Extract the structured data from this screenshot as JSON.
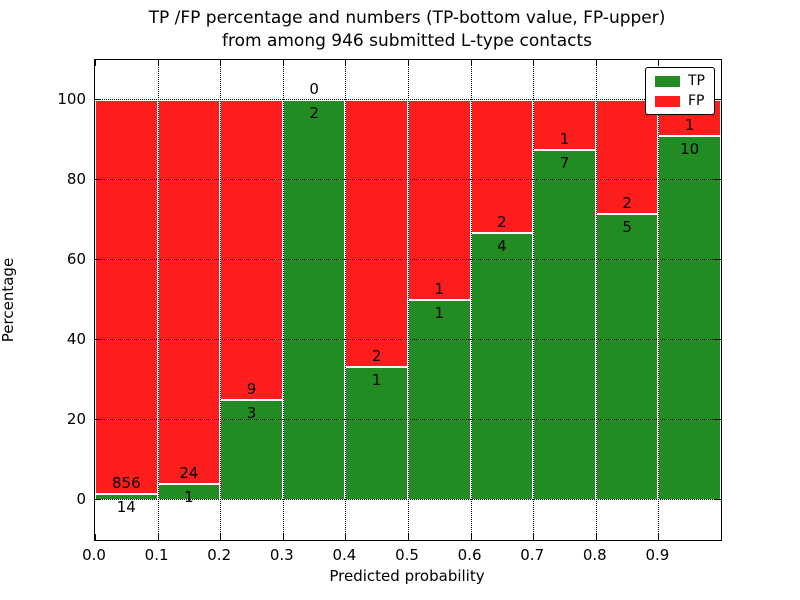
{
  "title": {
    "line1": "TP /FP percentage and numbers (TP-bottom value, FP-upper)",
    "line2": "from among 946 submitted L-type contacts"
  },
  "axes": {
    "xlabel": "Predicted probability",
    "ylabel": "Percentage",
    "xtick_labels": [
      "0.0",
      "0.1",
      "0.2",
      "0.3",
      "0.4",
      "0.5",
      "0.6",
      "0.7",
      "0.8",
      "0.9"
    ],
    "ytick_labels": [
      "0",
      "20",
      "40",
      "60",
      "80",
      "100"
    ]
  },
  "legend": {
    "items": [
      {
        "label": "TP",
        "color": "#228b22"
      },
      {
        "label": "FP",
        "color": "#fd1d1d"
      }
    ]
  },
  "chart_data": {
    "type": "bar",
    "variant": "stacked-percentage",
    "title": "TP /FP percentage and numbers (TP-bottom value, FP-upper)\nfrom among 946 submitted L-type contacts",
    "xlabel": "Predicted probability",
    "ylabel": "Percentage",
    "total_submitted": 946,
    "bins": [
      {
        "x_start": 0.0,
        "x_end": 0.1,
        "tp": 14,
        "fp": 856,
        "tp_percent": 1.61
      },
      {
        "x_start": 0.1,
        "x_end": 0.2,
        "tp": 1,
        "fp": 24,
        "tp_percent": 4.0
      },
      {
        "x_start": 0.2,
        "x_end": 0.3,
        "tp": 3,
        "fp": 9,
        "tp_percent": 25.0
      },
      {
        "x_start": 0.3,
        "x_end": 0.4,
        "tp": 2,
        "fp": 0,
        "tp_percent": 100.0
      },
      {
        "x_start": 0.4,
        "x_end": 0.5,
        "tp": 1,
        "fp": 2,
        "tp_percent": 33.33
      },
      {
        "x_start": 0.5,
        "x_end": 0.6,
        "tp": 1,
        "fp": 1,
        "tp_percent": 50.0
      },
      {
        "x_start": 0.6,
        "x_end": 0.7,
        "tp": 4,
        "fp": 2,
        "tp_percent": 66.67
      },
      {
        "x_start": 0.7,
        "x_end": 0.8,
        "tp": 7,
        "fp": 1,
        "tp_percent": 87.5
      },
      {
        "x_start": 0.8,
        "x_end": 0.9,
        "tp": 5,
        "fp": 2,
        "tp_percent": 71.43
      },
      {
        "x_start": 0.9,
        "x_end": 1.0,
        "tp": 10,
        "fp": 1,
        "tp_percent": 90.91
      }
    ],
    "series": [
      {
        "name": "TP",
        "color": "#228b22",
        "counts": [
          14,
          1,
          3,
          2,
          1,
          1,
          4,
          7,
          5,
          10
        ]
      },
      {
        "name": "FP",
        "color": "#fd1d1d",
        "counts": [
          856,
          24,
          9,
          0,
          2,
          1,
          2,
          1,
          2,
          1
        ]
      }
    ],
    "xticks": [
      0.0,
      0.1,
      0.2,
      0.3,
      0.4,
      0.5,
      0.6,
      0.7,
      0.8,
      0.9
    ],
    "yticks": [
      0,
      20,
      40,
      60,
      80,
      100
    ],
    "xlim": [
      0.0,
      1.0
    ],
    "ylim": [
      -10,
      110
    ],
    "grid": {
      "style": "dotted",
      "color": "#000000",
      "drawn_above_bars": true
    },
    "bar_edge_color": "#ffffff",
    "legend_position": "upper-right"
  }
}
